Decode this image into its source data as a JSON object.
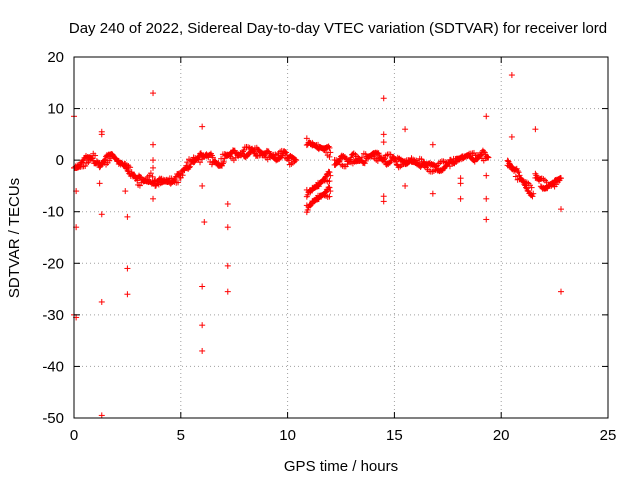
{
  "chart_data": {
    "type": "scatter",
    "title": "Day 240 of 2022, Sidereal Day-to-day VTEC variation (SDTVAR) for receiver lord",
    "xlabel": "GPS time / hours",
    "ylabel": "SDTVAR / TECUs",
    "xlim": [
      0,
      25
    ],
    "ylim": [
      -50,
      20
    ],
    "xticks": [
      0,
      5,
      10,
      15,
      20,
      25
    ],
    "yticks": [
      -50,
      -40,
      -30,
      -20,
      -10,
      0,
      10,
      20
    ],
    "grid": true,
    "marker": "+",
    "color": "#ff0000",
    "series": [
      {
        "name": "SDTVAR",
        "segments": [
          {
            "x": [
              0.0,
              0.3,
              0.6,
              0.9,
              1.2,
              1.5,
              1.8,
              2.1,
              2.4,
              2.7,
              3.0,
              3.3,
              3.6,
              3.8
            ],
            "y": [
              -1.5,
              -1.0,
              0.0,
              0.5,
              -1.0,
              0.0,
              1.0,
              -0.5,
              -1.0,
              -2.5,
              -4.0,
              -4.0,
              -3.5,
              -4.5
            ]
          },
          {
            "x": [
              3.8,
              4.1,
              4.4,
              4.7,
              5.0,
              5.3,
              5.6,
              5.9,
              6.2,
              6.5,
              6.8,
              7.1,
              7.4,
              7.7
            ],
            "y": [
              -4.5,
              -4.0,
              -4.0,
              -4.0,
              -3.0,
              -1.0,
              0.0,
              0.5,
              1.0,
              0.0,
              -1.0,
              1.0,
              1.0,
              1.0
            ]
          },
          {
            "x": [
              7.7,
              8.0,
              8.3,
              8.6,
              8.9,
              9.2,
              9.5,
              9.8,
              10.1,
              10.4
            ],
            "y": [
              1.0,
              1.5,
              2.0,
              1.5,
              1.0,
              1.0,
              0.5,
              1.5,
              0.0,
              0.0
            ]
          },
          {
            "x": [
              10.9,
              11.2,
              11.5,
              11.8,
              12.0
            ],
            "y": [
              3.5,
              3.0,
              2.5,
              2.0,
              1.5
            ]
          },
          {
            "x": [
              10.9,
              11.2,
              11.5,
              11.8,
              12.0
            ],
            "y": [
              -9.5,
              -8.0,
              -7.0,
              -6.5,
              -6.0
            ]
          },
          {
            "x": [
              10.9,
              11.2,
              11.5,
              11.8,
              12.0
            ],
            "y": [
              -6.5,
              -5.5,
              -4.5,
              -3.5,
              -3.0
            ]
          },
          {
            "x": [
              12.2,
              12.5,
              12.8,
              13.1,
              13.4,
              13.7,
              14.0,
              14.3,
              14.6,
              14.9,
              15.2,
              15.5,
              15.8,
              16.1,
              16.4
            ],
            "y": [
              -0.5,
              0.0,
              -0.5,
              0.5,
              0.0,
              0.5,
              1.0,
              0.5,
              0.0,
              0.5,
              -0.5,
              -0.5,
              0.0,
              -0.5,
              -0.5
            ]
          },
          {
            "x": [
              16.4,
              16.7,
              17.0,
              17.3,
              17.6,
              17.9,
              18.2,
              18.5,
              18.8,
              19.1,
              19.4
            ],
            "y": [
              -1.0,
              -1.5,
              -1.5,
              -1.0,
              -0.5,
              0.0,
              0.5,
              1.0,
              0.5,
              1.0,
              0.5
            ]
          },
          {
            "x": [
              20.3,
              20.6,
              20.9,
              21.2,
              21.5
            ],
            "y": [
              -0.5,
              -2.0,
              -3.5,
              -5.0,
              -6.5
            ]
          },
          {
            "x": [
              21.6,
              21.9,
              22.2,
              22.5,
              22.8
            ],
            "y": [
              -3.0,
              -4.5,
              -5.0,
              -4.5,
              -3.5
            ]
          }
        ],
        "outliers": [
          [
            0.0,
            8.5
          ],
          [
            0.1,
            -6.0
          ],
          [
            0.1,
            -13.0
          ],
          [
            0.0,
            -30.0
          ],
          [
            0.1,
            -30.5
          ],
          [
            1.3,
            5.0
          ],
          [
            1.3,
            5.5
          ],
          [
            1.2,
            -4.5
          ],
          [
            1.3,
            -10.5
          ],
          [
            1.3,
            -27.5
          ],
          [
            1.3,
            -49.5
          ],
          [
            2.4,
            -6.0
          ],
          [
            2.5,
            -11.0
          ],
          [
            2.5,
            -21.0
          ],
          [
            2.5,
            -26.0
          ],
          [
            3.7,
            13.0
          ],
          [
            3.7,
            3.0
          ],
          [
            3.7,
            0.0
          ],
          [
            3.7,
            -1.5
          ],
          [
            3.7,
            -7.5
          ],
          [
            6.0,
            6.5
          ],
          [
            6.0,
            -5.0
          ],
          [
            6.1,
            -12.0
          ],
          [
            6.0,
            -24.5
          ],
          [
            6.0,
            -32.0
          ],
          [
            6.0,
            -37.0
          ],
          [
            7.2,
            -8.5
          ],
          [
            7.2,
            -13.0
          ],
          [
            7.2,
            -20.5
          ],
          [
            7.2,
            -25.5
          ],
          [
            14.5,
            12.0
          ],
          [
            14.5,
            5.0
          ],
          [
            14.5,
            3.5
          ],
          [
            14.5,
            -7.0
          ],
          [
            14.5,
            -8.0
          ],
          [
            15.5,
            6.0
          ],
          [
            15.5,
            -5.0
          ],
          [
            16.8,
            3.0
          ],
          [
            16.8,
            -6.5
          ],
          [
            18.1,
            -3.5
          ],
          [
            18.1,
            -4.5
          ],
          [
            18.1,
            -7.5
          ],
          [
            19.3,
            8.5
          ],
          [
            19.3,
            -3.0
          ],
          [
            19.3,
            -7.5
          ],
          [
            19.3,
            -11.5
          ],
          [
            20.5,
            16.5
          ],
          [
            20.5,
            4.5
          ],
          [
            21.6,
            6.0
          ],
          [
            22.8,
            -9.5
          ],
          [
            22.8,
            -25.5
          ]
        ]
      }
    ]
  }
}
